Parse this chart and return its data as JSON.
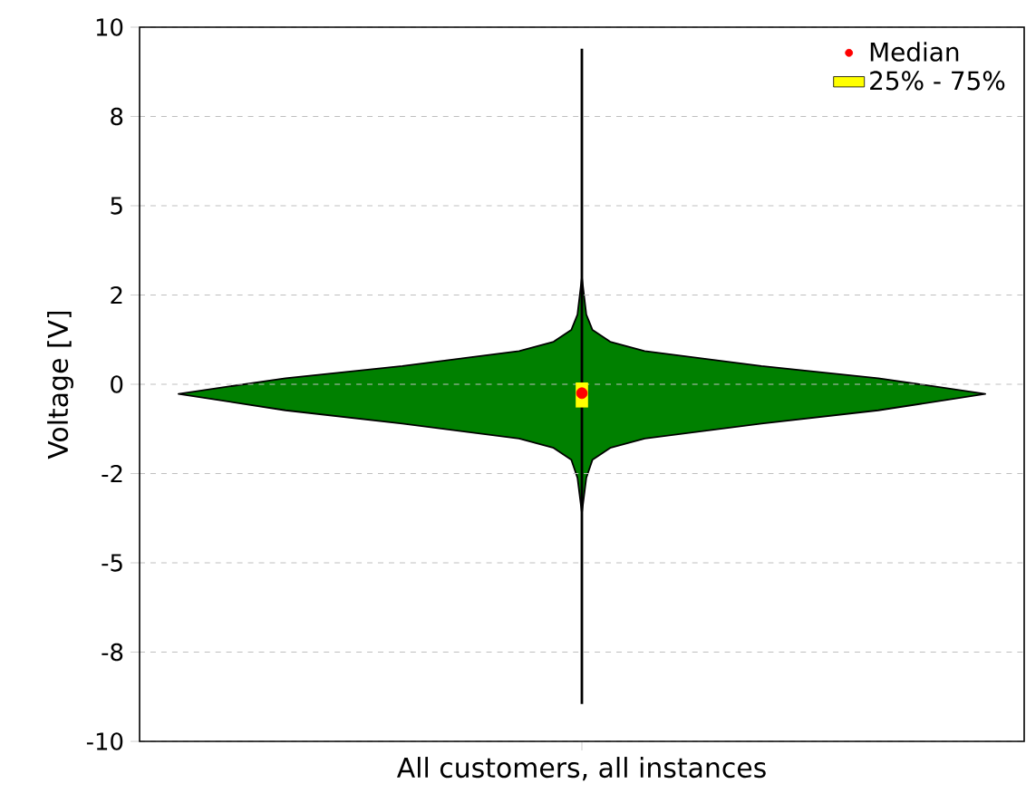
{
  "chart_data": {
    "type": "box",
    "ylabel": "Voltage [V]",
    "categories": [
      "All customers, all instances"
    ],
    "ylim": [
      -10,
      10
    ],
    "yticks": [
      {
        "value": -10,
        "label": "-10"
      },
      {
        "value": -7.5,
        "label": "-8"
      },
      {
        "value": -5,
        "label": "-5"
      },
      {
        "value": -2.5,
        "label": "-2"
      },
      {
        "value": 0,
        "label": "0"
      },
      {
        "value": 2.5,
        "label": "2"
      },
      {
        "value": 5,
        "label": "5"
      },
      {
        "value": 7.5,
        "label": "8"
      },
      {
        "value": 10,
        "label": "10"
      }
    ],
    "grid": "y",
    "legend": "top right",
    "marker": "circle",
    "series": [
      {
        "name": "25% - 75%",
        "color": "#ffff00",
        "boxes": [
          {
            "low": -8.95,
            "q1": -0.65,
            "median": -0.25,
            "q3": 0.05,
            "high": 9.4
          }
        ]
      },
      {
        "type": "scatter",
        "name": "Median",
        "color": "#ff0000",
        "values": [
          -0.25
        ]
      }
    ]
  }
}
